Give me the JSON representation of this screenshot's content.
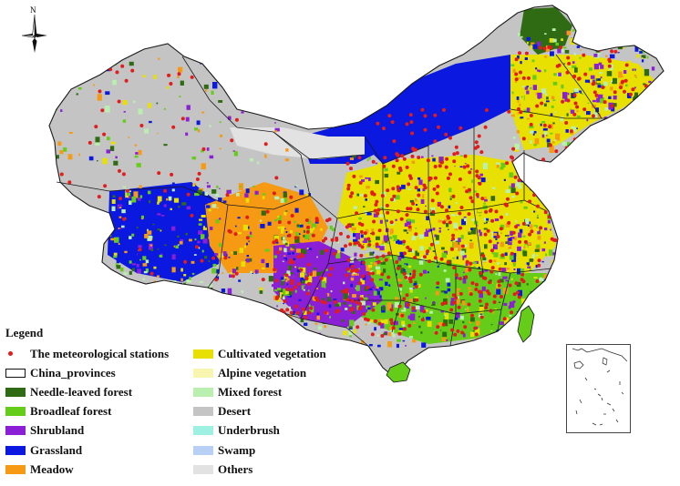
{
  "map": {
    "compass_letter": "N",
    "legend": {
      "title": "Legend",
      "left_items": [
        {
          "label": "The meteorological stations",
          "swatch": "dot",
          "color": "#e11c1c"
        },
        {
          "label": "China_provinces",
          "swatch": "outline",
          "color": "#111111"
        },
        {
          "label": "Needle-leaved forest",
          "swatch": "fill",
          "color": "#2f6b12"
        },
        {
          "label": "Broadleaf forest",
          "swatch": "fill",
          "color": "#66cc1a"
        },
        {
          "label": "Shrubland",
          "swatch": "fill",
          "color": "#8a1fd6"
        },
        {
          "label": "Grassland",
          "swatch": "fill",
          "color": "#0a18e0"
        },
        {
          "label": "Meadow",
          "swatch": "fill",
          "color": "#f59a12"
        }
      ],
      "right_items": [
        {
          "label": "Cultivated vegetation",
          "swatch": "fill",
          "color": "#e8e000"
        },
        {
          "label": "Alpine vegetation",
          "swatch": "fill",
          "color": "#f7f5b0"
        },
        {
          "label": "Mixed forest",
          "swatch": "fill",
          "color": "#b9f0b0"
        },
        {
          "label": "Desert",
          "swatch": "fill",
          "color": "#c4c4c4"
        },
        {
          "label": "Underbrush",
          "swatch": "fill",
          "color": "#9ef0e0"
        },
        {
          "label": "Swamp",
          "swatch": "fill",
          "color": "#b8d0f5"
        },
        {
          "label": "Others",
          "swatch": "fill",
          "color": "#e2e2e2"
        }
      ]
    },
    "colors": {
      "station": "#e11c1c",
      "province_border": "#1a1a1a",
      "cultivated": "#e8e000",
      "desert": "#c4c4c4",
      "grassland": "#0a18e0",
      "meadow": "#f59a12",
      "shrubland": "#8a1fd6",
      "broadleaf": "#66cc1a",
      "needle": "#2f6b12",
      "mixed": "#b9f0b0",
      "others": "#e2e2e2"
    }
  }
}
